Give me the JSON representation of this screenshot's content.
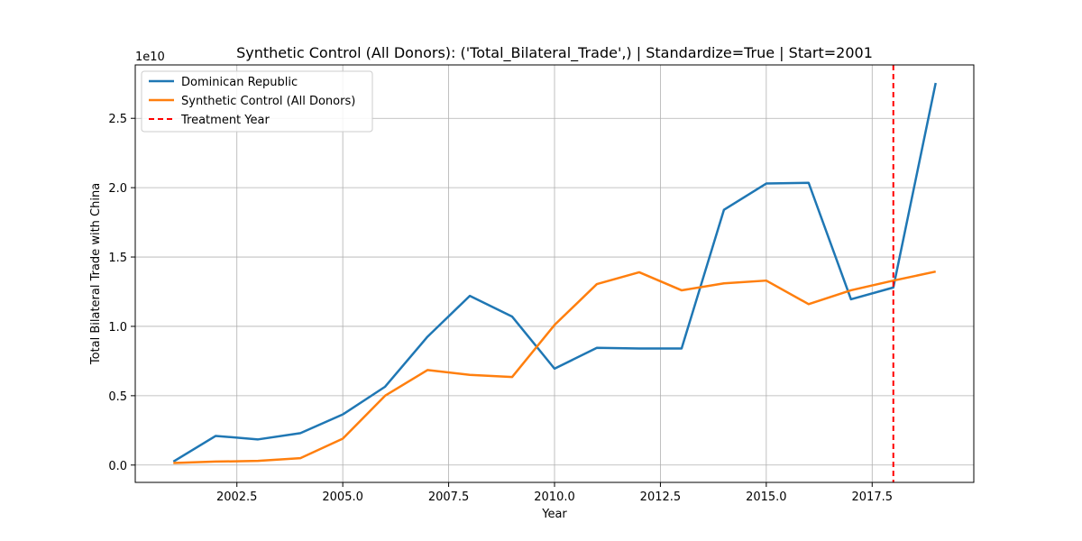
{
  "chart_data": {
    "type": "line",
    "title": "Synthetic Control (All Donors): ('Total_Bilateral_Trade',) | Standardize=True | Start=2001",
    "xlabel": "Year",
    "ylabel": "Total Bilateral Trade with China",
    "y_offset_label": "1e10",
    "y_scale_factor": 10000000000,
    "xlim": [
      2000.1,
      2019.9
    ],
    "ylim": [
      -1250000000,
      28850000000
    ],
    "x_ticks": [
      2002.5,
      2005.0,
      2007.5,
      2010.0,
      2012.5,
      2015.0,
      2017.5
    ],
    "x_tick_labels": [
      "2002.5",
      "2005.0",
      "2007.5",
      "2010.0",
      "2012.5",
      "2015.0",
      "2017.5"
    ],
    "y_ticks": [
      0,
      5000000000,
      10000000000,
      15000000000,
      20000000000,
      25000000000
    ],
    "y_tick_labels": [
      "0.0",
      "0.5",
      "1.0",
      "1.5",
      "2.0",
      "2.5"
    ],
    "grid": true,
    "legend_position": "top-left",
    "series": [
      {
        "name": "Dominican Republic",
        "color": "#1f77b4",
        "style": "solid",
        "x": [
          2001,
          2002,
          2003,
          2004,
          2005,
          2006,
          2007,
          2008,
          2009,
          2010,
          2011,
          2012,
          2013,
          2014,
          2015,
          2016,
          2017,
          2018,
          2019
        ],
        "values": [
          250000000,
          2100000000,
          1850000000,
          2300000000,
          3650000000,
          5650000000,
          9250000000,
          12200000000,
          10700000000,
          6950000000,
          8450000000,
          8400000000,
          8400000000,
          18400000000,
          20300000000,
          20350000000,
          11950000000,
          12800000000,
          27550000000
        ]
      },
      {
        "name": "Synthetic Control (All Donors)",
        "color": "#ff7f0e",
        "style": "solid",
        "x": [
          2001,
          2002,
          2003,
          2004,
          2005,
          2006,
          2007,
          2008,
          2009,
          2010,
          2011,
          2012,
          2013,
          2014,
          2015,
          2016,
          2017,
          2018,
          2019
        ],
        "values": [
          150000000,
          250000000,
          300000000,
          500000000,
          1900000000,
          5000000000,
          6850000000,
          6500000000,
          6350000000,
          10100000000,
          13050000000,
          13900000000,
          12600000000,
          13100000000,
          13300000000,
          11600000000,
          12600000000,
          13300000000,
          13950000000
        ]
      }
    ],
    "treatment_line": {
      "name": "Treatment Year",
      "x": 2018,
      "color": "#ff0000",
      "style": "dashed"
    }
  }
}
